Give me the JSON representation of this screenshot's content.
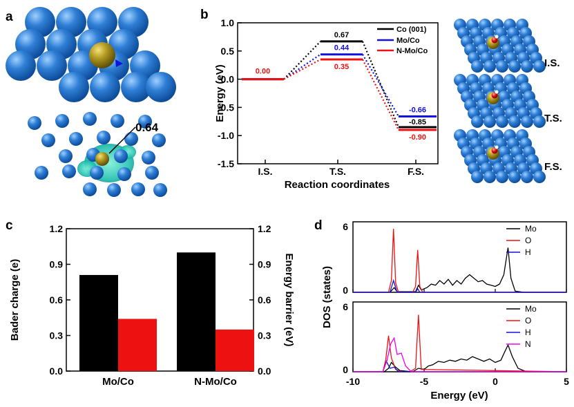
{
  "panel_labels": [
    "a",
    "b",
    "c",
    "d"
  ],
  "panel_a": {
    "annotation": "0.64"
  },
  "structures": [
    {
      "label": "I.S."
    },
    {
      "label": "T.S."
    },
    {
      "label": "F.S."
    }
  ],
  "colors": {
    "black": "#000000",
    "blue": "#1010e0",
    "red": "#ee1111",
    "magenta": "#ee00ee",
    "atom_blue": "#2f7fd6",
    "atom_gold": "#a08a20",
    "charge_cyan": "#20c0b0"
  },
  "chart_data": [
    {
      "id": "b",
      "type": "line",
      "xlabel": "Reaction coordinates",
      "ylabel": "Energy (eV)",
      "categories": [
        "I.S.",
        "T.S.",
        "F.S."
      ],
      "ylim": [
        -1.5,
        1.0
      ],
      "yticks": [
        "1.0",
        "0.5",
        "0.0",
        "-0.5",
        "-1.0",
        "-1.5"
      ],
      "legend_position": "top-right",
      "series": [
        {
          "name": "Co (001)",
          "color": "#000000",
          "values": [
            0.0,
            0.67,
            -0.85
          ],
          "labels": [
            "",
            "0.67",
            "-0.85"
          ]
        },
        {
          "name": "Mo/Co",
          "color": "#1010e0",
          "values": [
            0.0,
            0.44,
            -0.66
          ],
          "labels": [
            "",
            "0.44",
            "-0.66"
          ]
        },
        {
          "name": "N-Mo/Co",
          "color": "#ee1111",
          "values": [
            0.0,
            0.35,
            -0.9
          ],
          "labels": [
            "0.00",
            "0.35",
            "-0.90"
          ]
        }
      ]
    },
    {
      "id": "c",
      "type": "bar",
      "categories": [
        "Mo/Co",
        "N-Mo/Co"
      ],
      "ylabel": "Bader charge (e)",
      "y2label": "Energy barrier (eV)",
      "ylim": [
        0.0,
        1.2
      ],
      "yticks": [
        "1.2",
        "0.9",
        "0.6",
        "0.3",
        "0.0"
      ],
      "series": [
        {
          "name": "Bader charge",
          "color": "#000000",
          "axis": "left",
          "values": [
            0.81,
            1.0
          ]
        },
        {
          "name": "Energy barrier",
          "color": "#ee1111",
          "axis": "right",
          "values": [
            0.44,
            0.35
          ]
        }
      ]
    },
    {
      "id": "d",
      "type": "line",
      "xlabel": "Energy (eV)",
      "ylabel": "DOS (states)",
      "xlim": [
        -10,
        5
      ],
      "xticks": [
        "-10",
        "-5",
        "0",
        "5"
      ],
      "ylim": [
        0,
        6
      ],
      "yticks_top": [
        "6",
        "0"
      ],
      "yticks_bottom": [
        "6",
        "0"
      ],
      "top": {
        "legend": [
          {
            "name": "Mo",
            "color": "#000000"
          },
          {
            "name": "O",
            "color": "#ee1111"
          },
          {
            "name": "H",
            "color": "#1010e0"
          }
        ],
        "series": [
          {
            "name": "Mo",
            "color": "#000000",
            "x": [
              -10,
              -7.4,
              -7.1,
              -6.9,
              -5.6,
              -5.4,
              -5.2,
              -4.8,
              -4.5,
              -4.2,
              -3.9,
              -3.6,
              -3.3,
              -3.0,
              -2.7,
              -2.4,
              -2.1,
              -1.8,
              -1.5,
              -1.2,
              -0.9,
              -0.6,
              -0.3,
              0.0,
              0.3,
              0.6,
              0.9,
              1.1,
              1.4,
              2.0,
              5
            ],
            "y": [
              0,
              0,
              0.4,
              0.05,
              0.05,
              0.6,
              0.2,
              0.4,
              0.7,
              0.6,
              1.0,
              0.7,
              1.1,
              0.6,
              1.0,
              0.7,
              1.2,
              1.5,
              1.2,
              0.9,
              1.0,
              0.7,
              0.6,
              0.5,
              0.7,
              1.5,
              3.8,
              1.2,
              0.1,
              0,
              0
            ]
          },
          {
            "name": "O",
            "color": "#ee1111",
            "x": [
              -10,
              -7.5,
              -7.3,
              -7.15,
              -7.0,
              -6.8,
              -5.8,
              -5.6,
              -5.45,
              -5.3,
              -5.1,
              5
            ],
            "y": [
              0,
              0,
              1.0,
              5.4,
              0.8,
              0.0,
              0.0,
              0.5,
              3.6,
              0.5,
              0.0,
              0
            ]
          },
          {
            "name": "H",
            "color": "#1010e0",
            "x": [
              -10,
              -7.4,
              -7.15,
              -6.9,
              -5.6,
              -5.45,
              -5.3,
              5
            ],
            "y": [
              0,
              0,
              1.0,
              0,
              0,
              0.3,
              0,
              0
            ]
          }
        ]
      },
      "bottom": {
        "legend": [
          {
            "name": "Mo",
            "color": "#000000"
          },
          {
            "name": "O",
            "color": "#ee1111"
          },
          {
            "name": "H",
            "color": "#1010e0"
          },
          {
            "name": "N",
            "color": "#ee00ee"
          }
        ],
        "series": [
          {
            "name": "Mo",
            "color": "#000000",
            "x": [
              -10,
              -7.8,
              -7.5,
              -7.3,
              -7.0,
              -6.7,
              -5.8,
              -5.4,
              -5.0,
              -4.7,
              -4.4,
              -4.0,
              -3.6,
              -3.2,
              -2.8,
              -2.4,
              -2.0,
              -1.6,
              -1.2,
              -0.8,
              -0.4,
              0.0,
              0.4,
              0.7,
              0.9,
              1.2,
              1.6,
              2.2,
              5
            ],
            "y": [
              0,
              0,
              0.3,
              0.8,
              0.4,
              0.1,
              0.0,
              0.3,
              0.2,
              0.5,
              0.6,
              0.9,
              0.8,
              1.0,
              0.9,
              1.1,
              1.0,
              1.3,
              1.1,
              0.9,
              1.1,
              0.8,
              1.0,
              1.8,
              2.3,
              1.3,
              0.3,
              0,
              0
            ]
          },
          {
            "name": "O",
            "color": "#ee1111",
            "x": [
              -10,
              -7.9,
              -7.7,
              -7.5,
              -7.3,
              -7.0,
              -6.6,
              -6.0,
              -5.6,
              -5.4,
              -5.2,
              5
            ],
            "y": [
              0,
              0,
              1.0,
              3.1,
              1.2,
              0.2,
              0.0,
              0.0,
              0.3,
              4.9,
              0.2,
              0
            ]
          },
          {
            "name": "H",
            "color": "#1010e0",
            "x": [
              -10,
              -7.9,
              -7.65,
              -7.4,
              -7.1,
              -6.8,
              5
            ],
            "y": [
              0,
              0,
              0.9,
              0.3,
              0.4,
              0,
              0
            ]
          },
          {
            "name": "N",
            "color": "#ee00ee",
            "x": [
              -10,
              -7.9,
              -7.6,
              -7.35,
              -7.1,
              -6.9,
              -6.6,
              -6.3,
              -5.9,
              5
            ],
            "y": [
              0,
              0,
              1.0,
              2.4,
              2.9,
              1.5,
              1.6,
              0.5,
              0,
              0
            ]
          }
        ]
      }
    }
  ]
}
